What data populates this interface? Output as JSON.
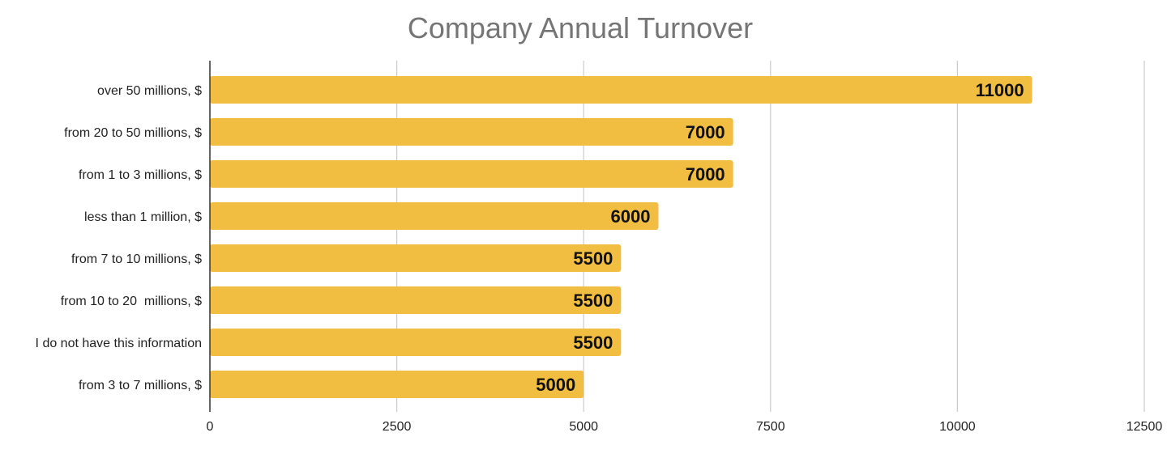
{
  "chart_data": {
    "type": "bar",
    "orientation": "horizontal",
    "title": "Company Annual Turnover",
    "categories": [
      "over 50 millions, $",
      "from 20 to 50 millions, $",
      "from 1 to 3 millions, $",
      "less than 1 million, $",
      "from 7 to 10 millions, $",
      "from 10 to 20  millions, $",
      "I do not have this information",
      "from 3 to 7 millions, $"
    ],
    "values": [
      11000,
      7000,
      7000,
      6000,
      5500,
      5500,
      5500,
      5000
    ],
    "xlim": [
      0,
      12500
    ],
    "xticks": [
      0,
      2500,
      5000,
      7500,
      10000,
      12500
    ],
    "xtick_labels": [
      "0",
      "2500",
      "5000",
      "7500",
      "10000",
      "12500"
    ],
    "grid": true,
    "legend": "none",
    "bar_color": "#f1be42"
  }
}
